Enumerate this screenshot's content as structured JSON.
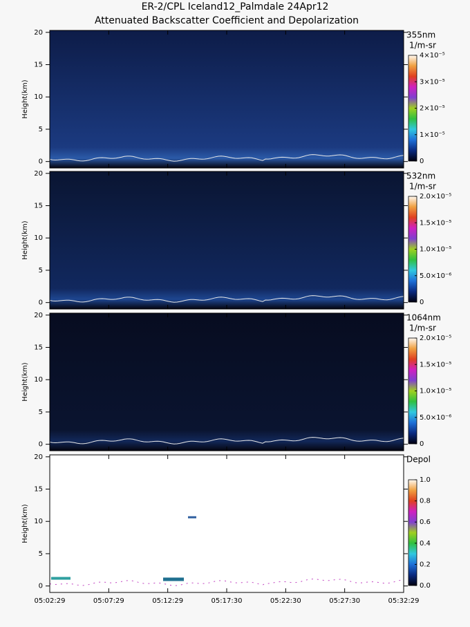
{
  "chart_data": [
    {
      "type": "heatmap",
      "title": "ER-2/CPL Iceland12_Palmdale 24Apr12",
      "subtitle": "Attenuated Backscatter Coefficient and Depolarization",
      "ylabel": "Height(km)",
      "ylim": [
        -1,
        20.3
      ],
      "yticks": [
        0,
        5,
        10,
        15,
        20
      ],
      "colorbar": {
        "label": "355nm",
        "units": "1/m-sr",
        "lim": [
          0,
          4e-05
        ],
        "ticks": [
          0,
          {
            "value": 1e-05,
            "label": "1×10⁻⁵"
          },
          {
            "value": 2e-05,
            "label": "2×10⁻⁵"
          },
          {
            "value": 3e-05,
            "label": "3×10⁻⁵"
          },
          {
            "value": 4e-05,
            "label": "4×10⁻⁵"
          }
        ]
      }
    },
    {
      "type": "heatmap",
      "ylabel": "Height(km)",
      "ylim": [
        -1,
        20.3
      ],
      "yticks": [
        0,
        5,
        10,
        15,
        20
      ],
      "colorbar": {
        "label": "532nm",
        "units": "1/m-sr",
        "lim": [
          0,
          2e-05
        ],
        "ticks": [
          0,
          {
            "value": 5e-06,
            "label": "5.0×10⁻⁶"
          },
          {
            "value": 1e-05,
            "label": "1.0×10⁻⁵"
          },
          {
            "value": 1.5e-05,
            "label": "1.5×10⁻⁵"
          },
          {
            "value": 2e-05,
            "label": "2.0×10⁻⁵"
          }
        ]
      }
    },
    {
      "type": "heatmap",
      "ylabel": "Height(km)",
      "ylim": [
        -1,
        20.3
      ],
      "yticks": [
        0,
        5,
        10,
        15,
        20
      ],
      "colorbar": {
        "label": "1064nm",
        "units": "1/m-sr",
        "lim": [
          0,
          2e-05
        ],
        "ticks": [
          0,
          {
            "value": 5e-06,
            "label": "5.0×10⁻⁶"
          },
          {
            "value": 1e-05,
            "label": "1.0×10⁻⁵"
          },
          {
            "value": 1.5e-05,
            "label": "1.5×10⁻⁵"
          },
          {
            "value": 2e-05,
            "label": "2.0×10⁻⁵"
          }
        ]
      }
    },
    {
      "type": "depol",
      "ylabel": "Height(km)",
      "ylim": [
        -1,
        20.3
      ],
      "yticks": [
        0,
        5,
        10,
        15,
        20
      ],
      "xticks": [
        "05:02:29",
        "05:07:29",
        "05:12:29",
        "05:17:30",
        "05:22:30",
        "05:27:30",
        "05:32:29"
      ],
      "colorbar": {
        "label": "Depol",
        "lim": [
          0,
          1
        ],
        "ticks": [
          {
            "value": 0,
            "label": "0.0"
          },
          0.2,
          0.4,
          0.6,
          0.8,
          {
            "value": 1,
            "label": "1.0"
          }
        ]
      }
    }
  ]
}
